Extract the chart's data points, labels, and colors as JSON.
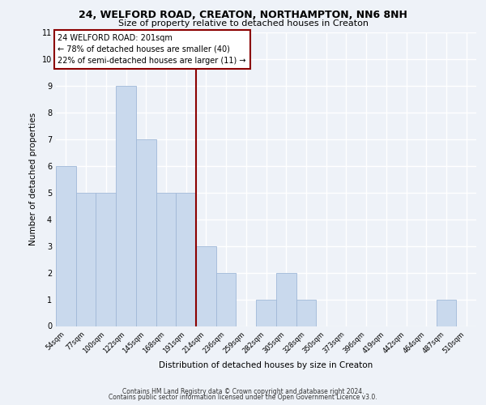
{
  "title1": "24, WELFORD ROAD, CREATON, NORTHAMPTON, NN6 8NH",
  "title2": "Size of property relative to detached houses in Creaton",
  "xlabel": "Distribution of detached houses by size in Creaton",
  "ylabel": "Number of detached properties",
  "bin_labels": [
    "54sqm",
    "77sqm",
    "100sqm",
    "122sqm",
    "145sqm",
    "168sqm",
    "191sqm",
    "214sqm",
    "236sqm",
    "259sqm",
    "282sqm",
    "305sqm",
    "328sqm",
    "350sqm",
    "373sqm",
    "396sqm",
    "419sqm",
    "442sqm",
    "464sqm",
    "487sqm",
    "510sqm"
  ],
  "bar_heights": [
    6,
    5,
    5,
    9,
    7,
    5,
    5,
    3,
    2,
    0,
    1,
    2,
    1,
    0,
    0,
    0,
    0,
    0,
    0,
    1,
    0
  ],
  "bar_color": "#c9d9ed",
  "bar_edge_color": "#a0b8d8",
  "vline_x_idx": 6.5,
  "vline_color": "#8b0000",
  "annotation_text": "24 WELFORD ROAD: 201sqm\n← 78% of detached houses are smaller (40)\n22% of semi-detached houses are larger (11) →",
  "annotation_box_color": "#8b0000",
  "footnote1": "Contains HM Land Registry data © Crown copyright and database right 2024.",
  "footnote2": "Contains public sector information licensed under the Open Government Licence v3.0.",
  "ylim": [
    0,
    11
  ],
  "yticks": [
    0,
    1,
    2,
    3,
    4,
    5,
    6,
    7,
    8,
    9,
    10,
    11
  ],
  "background_color": "#eef2f8",
  "grid_color": "#ffffff"
}
